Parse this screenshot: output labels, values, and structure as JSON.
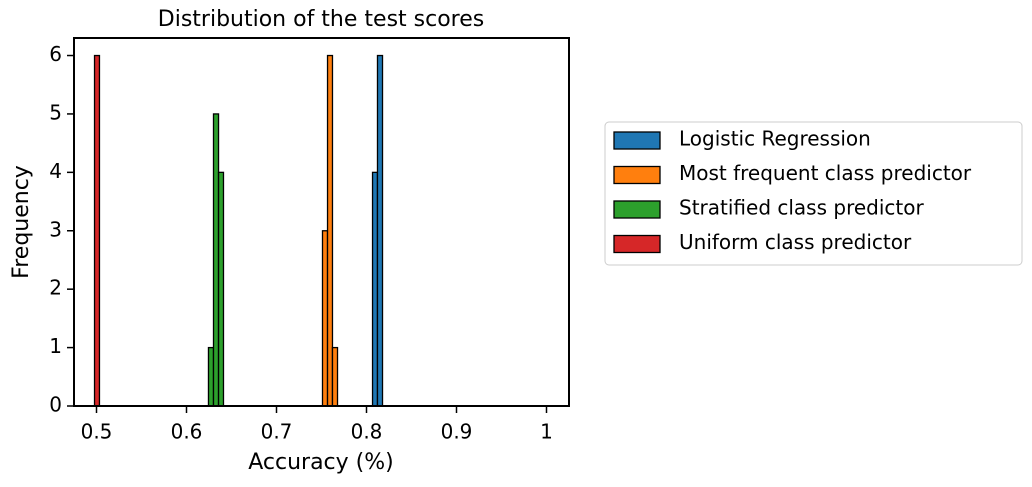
{
  "chart_data": {
    "type": "histogram",
    "title": "Distribution of the test scores",
    "x_label": "Accuracy (%)",
    "y_label": "Frequency",
    "xlim": [
      0.475,
      1.025
    ],
    "xticks": [
      0.5,
      0.6,
      0.7,
      0.8,
      0.9,
      1.0
    ],
    "ylim": [
      0,
      6.3
    ],
    "yticks": [
      0,
      1,
      2,
      3,
      4,
      5,
      6
    ],
    "legend": "outside right",
    "series": [
      {
        "name": "Logistic Regression",
        "color": "#1f77b4",
        "bins": [
          0.8067,
          0.8122,
          0.8178
        ],
        "values": [
          4,
          6
        ]
      },
      {
        "name": "Most frequent class predictor",
        "color": "#ff7f0e",
        "bins": [
          0.7511,
          0.7567,
          0.7622,
          0.7678
        ],
        "values": [
          3,
          6,
          1
        ]
      },
      {
        "name": "Stratified class predictor",
        "color": "#2ca02c",
        "bins": [
          0.6244,
          0.63,
          0.6356,
          0.6411
        ],
        "values": [
          1,
          5,
          4
        ]
      },
      {
        "name": "Uniform class predictor",
        "color": "#d62728",
        "bins": [
          0.4978,
          0.5033
        ],
        "values": [
          6
        ]
      }
    ]
  }
}
